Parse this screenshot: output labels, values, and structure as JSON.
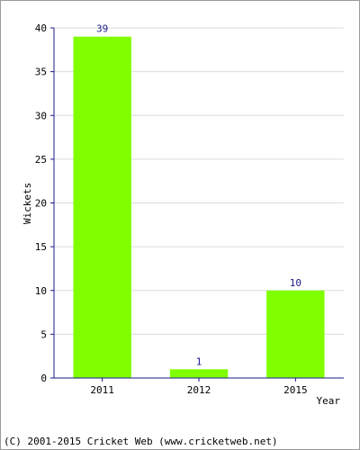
{
  "chart_data": {
    "type": "bar",
    "categories": [
      "2011",
      "2012",
      "2015"
    ],
    "values": [
      39,
      1,
      10
    ],
    "data_labels": [
      "39",
      "1",
      "10"
    ],
    "title": "",
    "xlabel": "Year",
    "ylabel": "Wickets",
    "ylim": [
      0,
      40
    ],
    "yticks": [
      0,
      5,
      10,
      15,
      20,
      25,
      30,
      35,
      40
    ],
    "ytick_labels": [
      "0",
      "5",
      "10",
      "15",
      "20",
      "25",
      "30",
      "35",
      "40"
    ],
    "grid": true,
    "bar_color": "#80ff00",
    "grid_color": "#dcdcdc",
    "axis_color": "#1a1a8c",
    "label_color": "#1a1a8c"
  },
  "footer": {
    "copyright": "(C) 2001-2015 Cricket Web (www.cricketweb.net)"
  }
}
